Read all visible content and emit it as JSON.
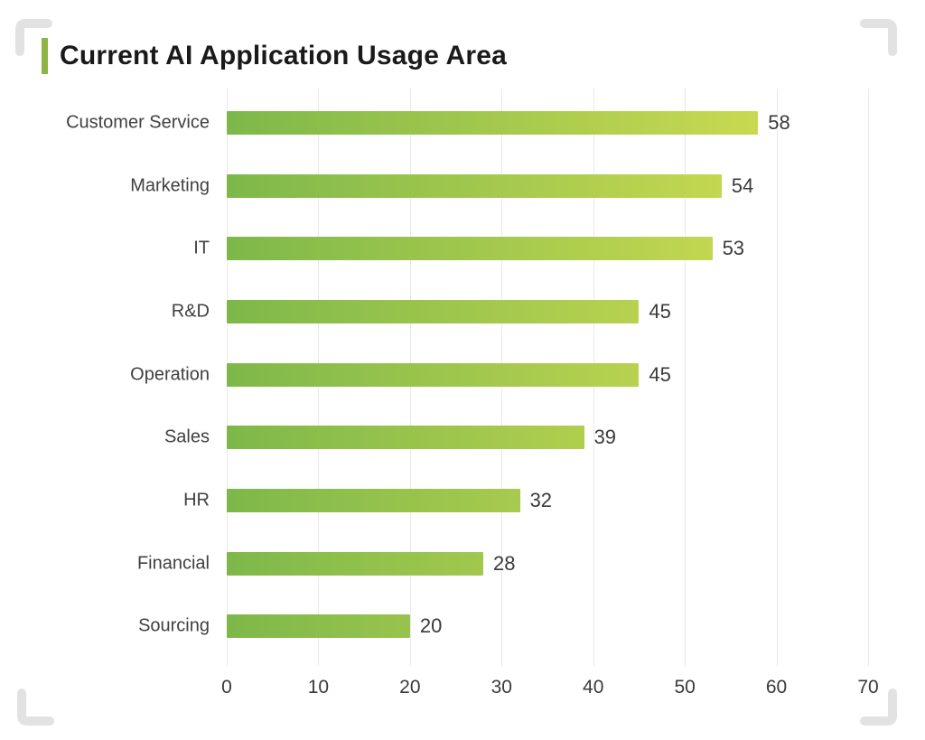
{
  "chart_data": {
    "type": "bar",
    "orientation": "horizontal",
    "title": "Current AI Application Usage Area",
    "categories": [
      "Customer Service",
      "Marketing",
      "IT",
      "R&D",
      "Operation",
      "Sales",
      "HR",
      "Financial",
      "Sourcing"
    ],
    "values": [
      58,
      54,
      53,
      45,
      45,
      39,
      32,
      28,
      20
    ],
    "x_ticks": [
      0,
      10,
      20,
      30,
      40,
      50,
      60,
      70
    ],
    "xlim": [
      0,
      70
    ],
    "grid": "vertical-only",
    "legend": "none",
    "value_labels": "outside-end"
  },
  "colors": {
    "accent_green": "#8CB544",
    "bar_gradient_start": "#7EB84A",
    "bar_gradient_end": "#D8E052",
    "frame_gray": "#E2E2E2",
    "gridline_gray": "#E9E9E9",
    "title_text": "#1A1A1A",
    "label_text": "#404040",
    "value_text": "#3A3A3A"
  }
}
